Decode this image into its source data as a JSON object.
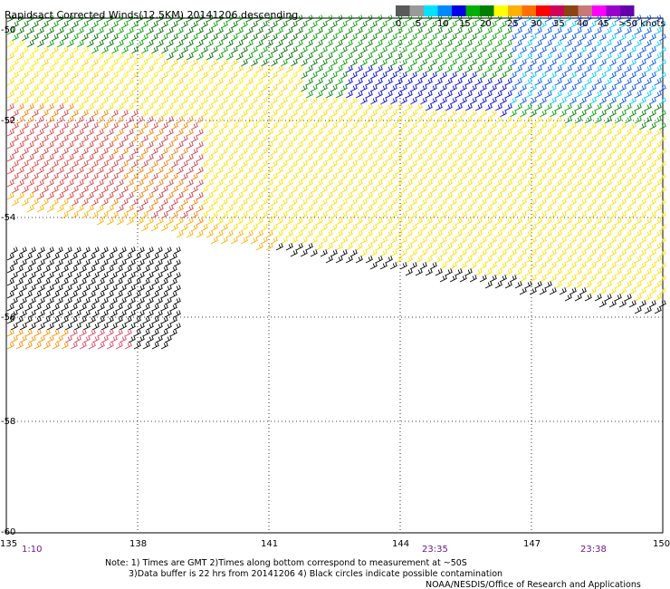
{
  "title": "Rapidsact Corrected Winds(12.5KM) 20141206 descending",
  "legend": {
    "colors": [
      "#5a5a5a",
      "#9a9a9a",
      "#00e0ff",
      "#0088ff",
      "#0000e6",
      "#00b000",
      "#008000",
      "#ffff00",
      "#ffb000",
      "#ff7000",
      "#ff0000",
      "#d0005a",
      "#8b4513",
      "#c87878",
      "#ff00ff",
      "#9900cc",
      "#6600aa"
    ],
    "ticks": [
      "0",
      "5",
      "10",
      "15",
      "20",
      "25",
      "30",
      "35",
      "40",
      "45",
      ">50 knots"
    ]
  },
  "axes": {
    "lon_ticks": [
      "135",
      "138",
      "141",
      "144",
      "147",
      "150"
    ],
    "lat_ticks": [
      "-50",
      "-52",
      "-54",
      "-56",
      "-58",
      "-60"
    ]
  },
  "times": [
    "1:10",
    "23:35",
    "23:38"
  ],
  "notes": {
    "line1": "Note: 1) Times are GMT 2)Times along bottom correspond to measurement at ~50S",
    "line2": "3)Data buffer is 22 hrs from 20141206 4) Black circles indicate possible contamination",
    "credit": "NOAA/NESDIS/Office of Research and Applications"
  }
}
